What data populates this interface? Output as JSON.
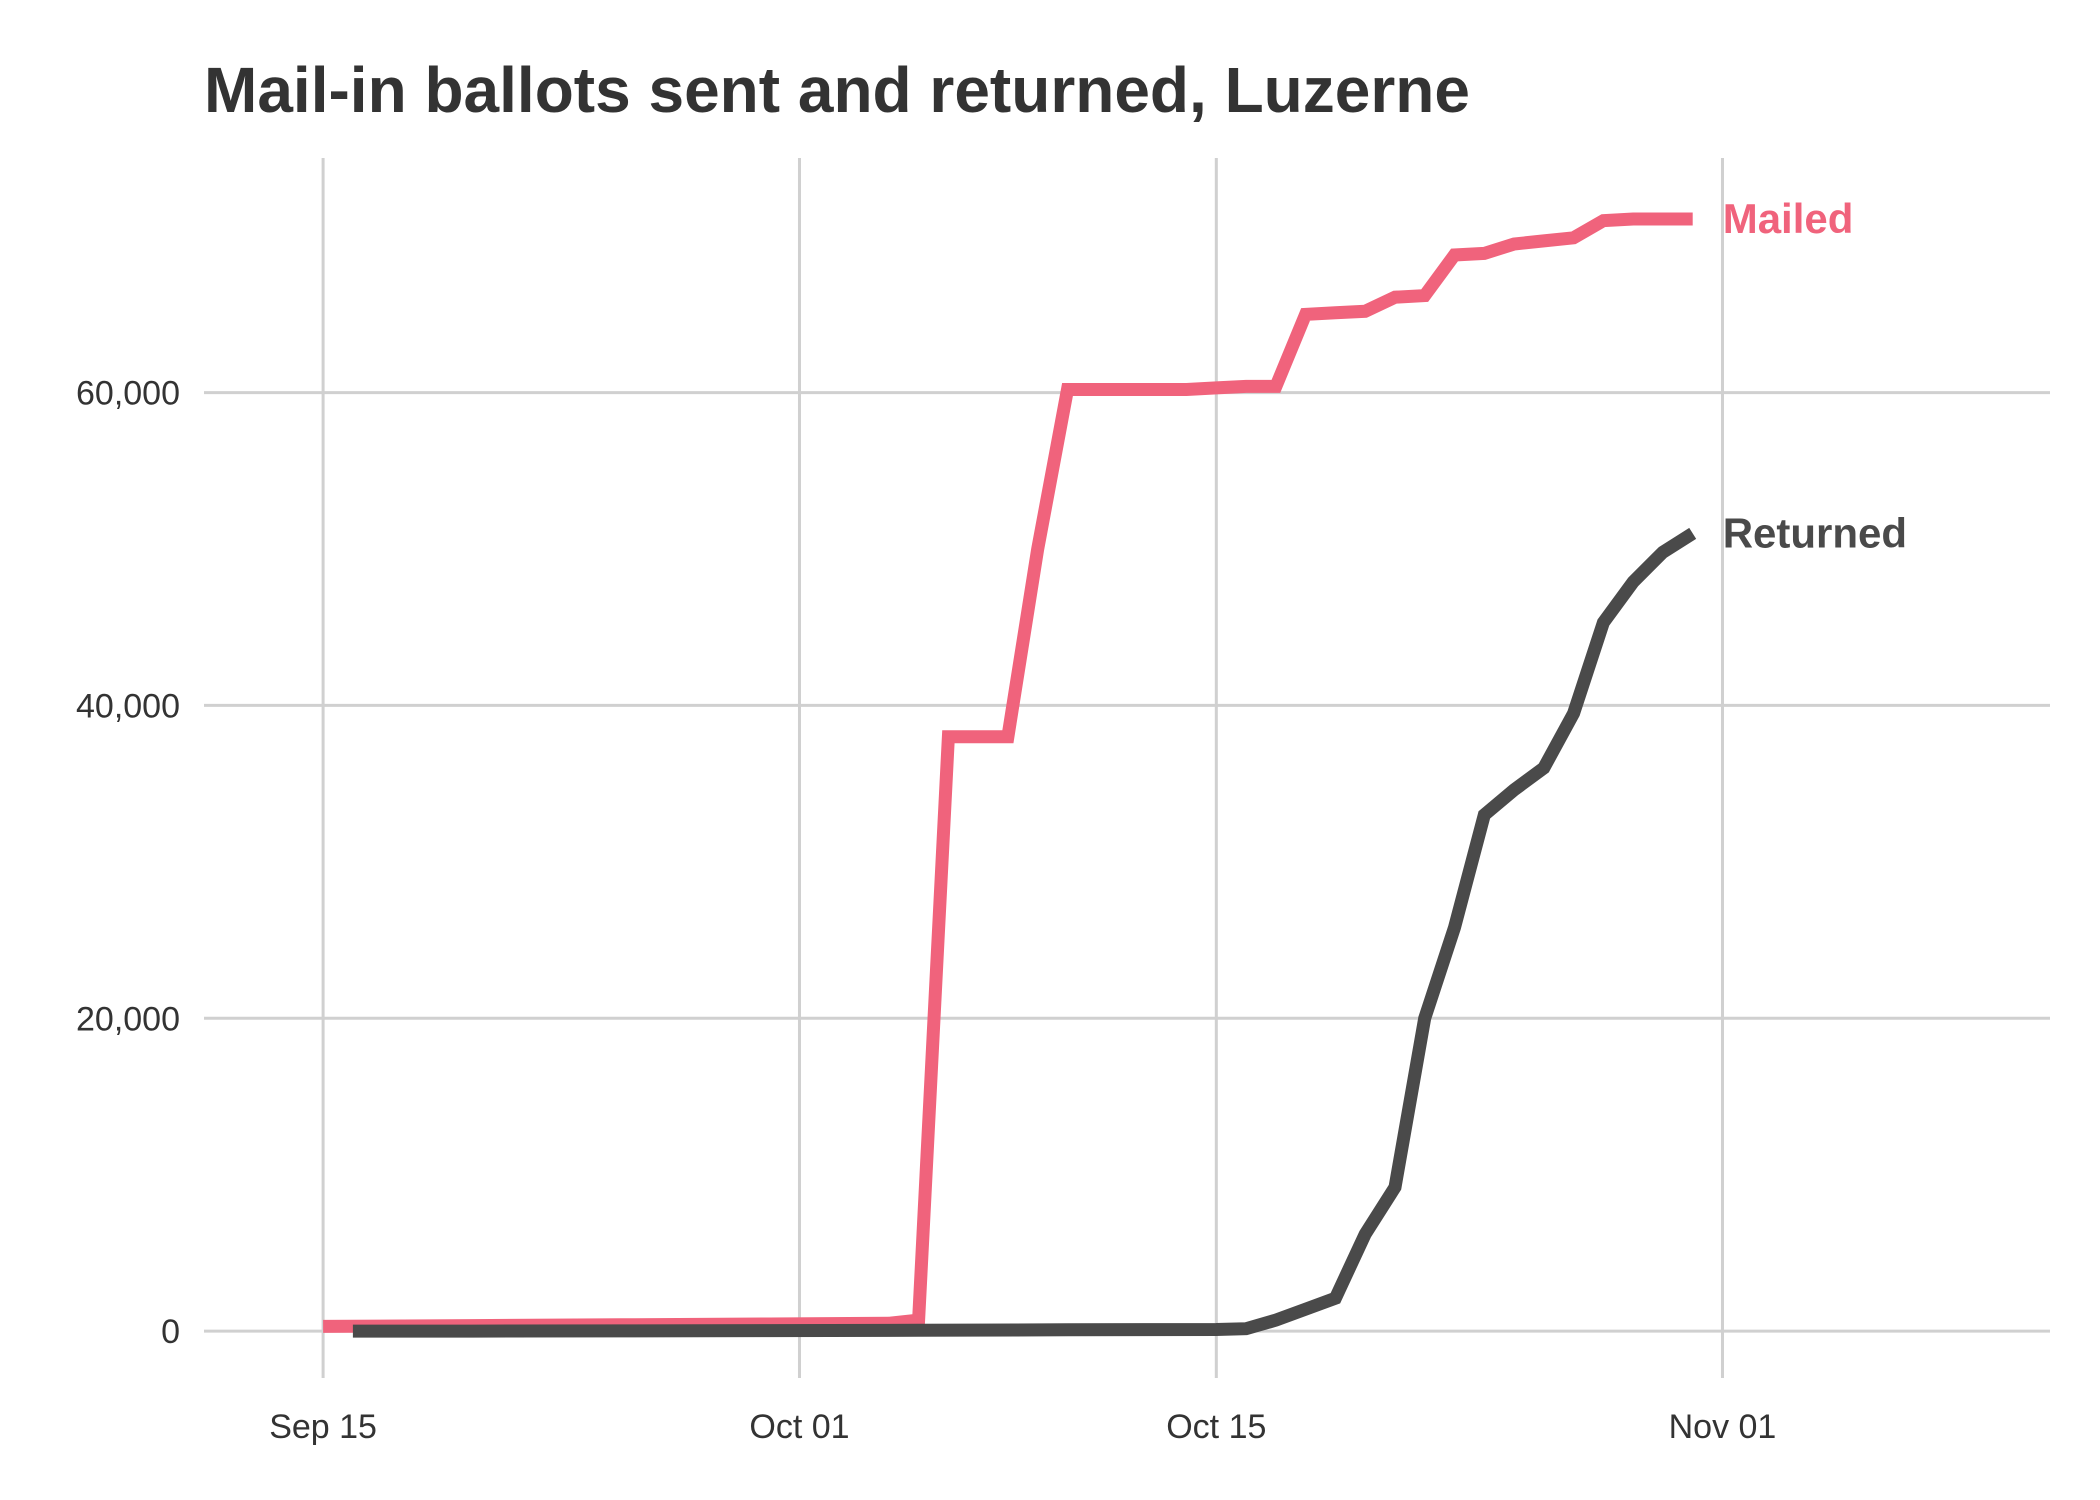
{
  "chart_data": {
    "type": "line",
    "title": "Mail-in ballots sent and returned, Luzerne",
    "xlabel": "",
    "ylabel": "",
    "x_ticks": [
      {
        "date": "2020-09-15",
        "label": "Sep 15"
      },
      {
        "date": "2020-10-01",
        "label": "Oct 01"
      },
      {
        "date": "2020-10-15",
        "label": "Oct 15"
      },
      {
        "date": "2020-11-01",
        "label": "Nov 01"
      }
    ],
    "xlim": [
      "2020-09-11",
      "2020-11-12"
    ],
    "ylim": [
      -3000,
      75000
    ],
    "y_ticks": [
      {
        "value": 0,
        "label": "0"
      },
      {
        "value": 20000,
        "label": "20,000"
      },
      {
        "value": 40000,
        "label": "40,000"
      },
      {
        "value": 60000,
        "label": "60,000"
      }
    ],
    "grid": true,
    "series": [
      {
        "name": "Mailed",
        "color": "#f0637c",
        "points": [
          [
            "2020-09-15",
            300
          ],
          [
            "2020-09-20",
            350
          ],
          [
            "2020-09-25",
            400
          ],
          [
            "2020-09-30",
            450
          ],
          [
            "2020-10-04",
            500
          ],
          [
            "2020-10-05",
            700
          ],
          [
            "2020-10-06",
            38000
          ],
          [
            "2020-10-07",
            38000
          ],
          [
            "2020-10-08",
            38000
          ],
          [
            "2020-10-09",
            50000
          ],
          [
            "2020-10-10",
            60200
          ],
          [
            "2020-10-12",
            60200
          ],
          [
            "2020-10-14",
            60200
          ],
          [
            "2020-10-15",
            60300
          ],
          [
            "2020-10-16",
            60400
          ],
          [
            "2020-10-17",
            60400
          ],
          [
            "2020-10-18",
            65000
          ],
          [
            "2020-10-19",
            65100
          ],
          [
            "2020-10-20",
            65200
          ],
          [
            "2020-10-21",
            66100
          ],
          [
            "2020-10-22",
            66200
          ],
          [
            "2020-10-23",
            68800
          ],
          [
            "2020-10-24",
            68900
          ],
          [
            "2020-10-25",
            69500
          ],
          [
            "2020-10-26",
            69700
          ],
          [
            "2020-10-27",
            69900
          ],
          [
            "2020-10-28",
            71000
          ],
          [
            "2020-10-29",
            71100
          ],
          [
            "2020-10-30",
            71100
          ],
          [
            "2020-10-31",
            71100
          ]
        ]
      },
      {
        "name": "Returned",
        "color": "#4a4a4a",
        "points": [
          [
            "2020-09-16",
            0
          ],
          [
            "2020-09-20",
            0
          ],
          [
            "2020-09-25",
            10
          ],
          [
            "2020-09-30",
            30
          ],
          [
            "2020-10-05",
            50
          ],
          [
            "2020-10-10",
            80
          ],
          [
            "2020-10-15",
            100
          ],
          [
            "2020-10-16",
            150
          ],
          [
            "2020-10-17",
            700
          ],
          [
            "2020-10-18",
            1400
          ],
          [
            "2020-10-19",
            2100
          ],
          [
            "2020-10-20",
            6200
          ],
          [
            "2020-10-21",
            9200
          ],
          [
            "2020-10-22",
            20000
          ],
          [
            "2020-10-23",
            25800
          ],
          [
            "2020-10-24",
            33000
          ],
          [
            "2020-10-25",
            34600
          ],
          [
            "2020-10-26",
            36000
          ],
          [
            "2020-10-27",
            39500
          ],
          [
            "2020-10-28",
            45300
          ],
          [
            "2020-10-29",
            47900
          ],
          [
            "2020-10-30",
            49800
          ],
          [
            "2020-10-31",
            51000
          ]
        ]
      }
    ]
  }
}
